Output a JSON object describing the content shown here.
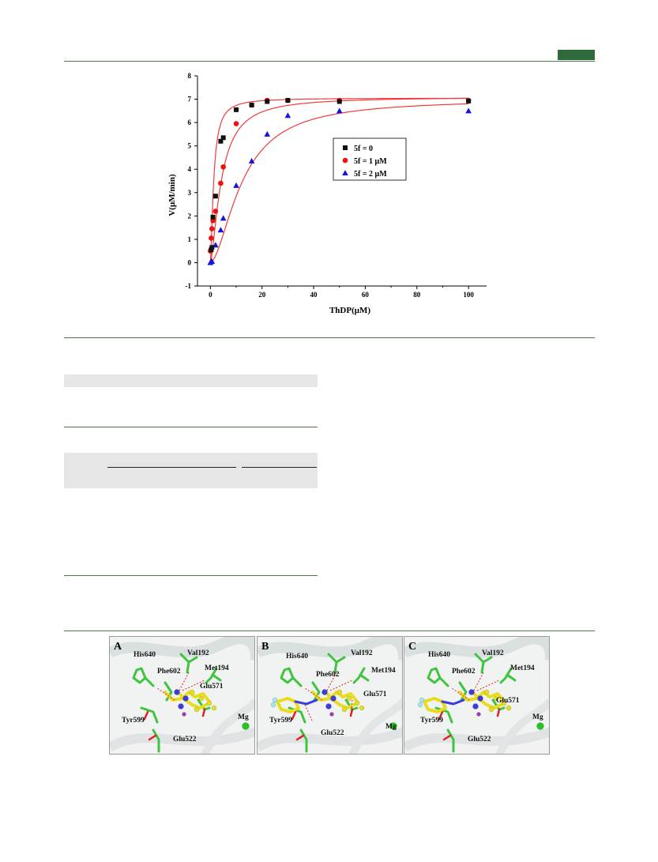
{
  "header": {
    "accent_color": "#2f6b3a"
  },
  "chart_data": {
    "type": "scatter",
    "xlabel": "ThDP(μM)",
    "ylabel": "V(μM/min)",
    "xlim": [
      -5,
      107
    ],
    "ylim": [
      -1,
      8
    ],
    "x_ticks": [
      0,
      20,
      40,
      60,
      80,
      100
    ],
    "y_ticks": [
      -1,
      0,
      1,
      2,
      3,
      4,
      5,
      6,
      7,
      8
    ],
    "fit_curve_color": "#ee3b3b",
    "legend_position": "right",
    "series": [
      {
        "name": "5f = 0",
        "marker": "square",
        "color": "#111111",
        "x": [
          0.3,
          0.6,
          1.0,
          2.0,
          4.0,
          5.0,
          10.0,
          16.0,
          22.0,
          30.0,
          50.0,
          100.0
        ],
        "y": [
          0.55,
          0.65,
          1.95,
          2.85,
          5.2,
          5.35,
          6.55,
          6.75,
          6.9,
          6.95,
          6.9,
          6.92
        ]
      },
      {
        "name": "5f = 1 μM",
        "marker": "circle",
        "color": "#ee1111",
        "x": [
          0.0,
          0.3,
          0.6,
          1.0,
          2.0,
          4.0,
          5.0,
          10.0,
          16.0,
          22.0,
          30.0,
          50.0,
          100.0
        ],
        "y": [
          0.5,
          1.05,
          1.45,
          1.8,
          2.2,
          3.4,
          4.1,
          5.95,
          6.75,
          6.95,
          6.95,
          6.95,
          6.95
        ]
      },
      {
        "name": "5f = 2 μM",
        "marker": "triangle",
        "color": "#1414dd",
        "x": [
          0.0,
          0.3,
          0.6,
          2.0,
          4.0,
          5.0,
          10.0,
          16.0,
          22.0,
          30.0,
          50.0,
          100.0
        ],
        "y": [
          0.0,
          0.05,
          0.05,
          0.75,
          1.4,
          1.9,
          3.3,
          4.35,
          5.5,
          6.3,
          6.5,
          6.5
        ]
      }
    ],
    "fits": [
      {
        "series": "5f = 0",
        "vmax": 7.05,
        "k": 1.3,
        "n": 1.5
      },
      {
        "series": "5f = 1 μM",
        "vmax": 7.1,
        "k": 4.3,
        "n": 1.5
      },
      {
        "series": "5f = 2 μM",
        "vmax": 7.0,
        "k": 12.5,
        "n": 1.7
      }
    ]
  },
  "panels": [
    {
      "letter": "A",
      "labels": [
        "His640",
        "Val192",
        "Phe602",
        "Met194",
        "Glu571",
        "Tyr599",
        "Mg",
        "Glu522"
      ]
    },
    {
      "letter": "B",
      "labels": [
        "His640",
        "Val192",
        "Phe602",
        "Met194",
        "Glu571",
        "Tyr599",
        "Mg",
        "Glu522"
      ]
    },
    {
      "letter": "C",
      "labels": [
        "His640",
        "Val192",
        "Phe602",
        "Met194",
        "Glu571",
        "Tyr599",
        "Mg",
        "Glu522"
      ]
    }
  ]
}
